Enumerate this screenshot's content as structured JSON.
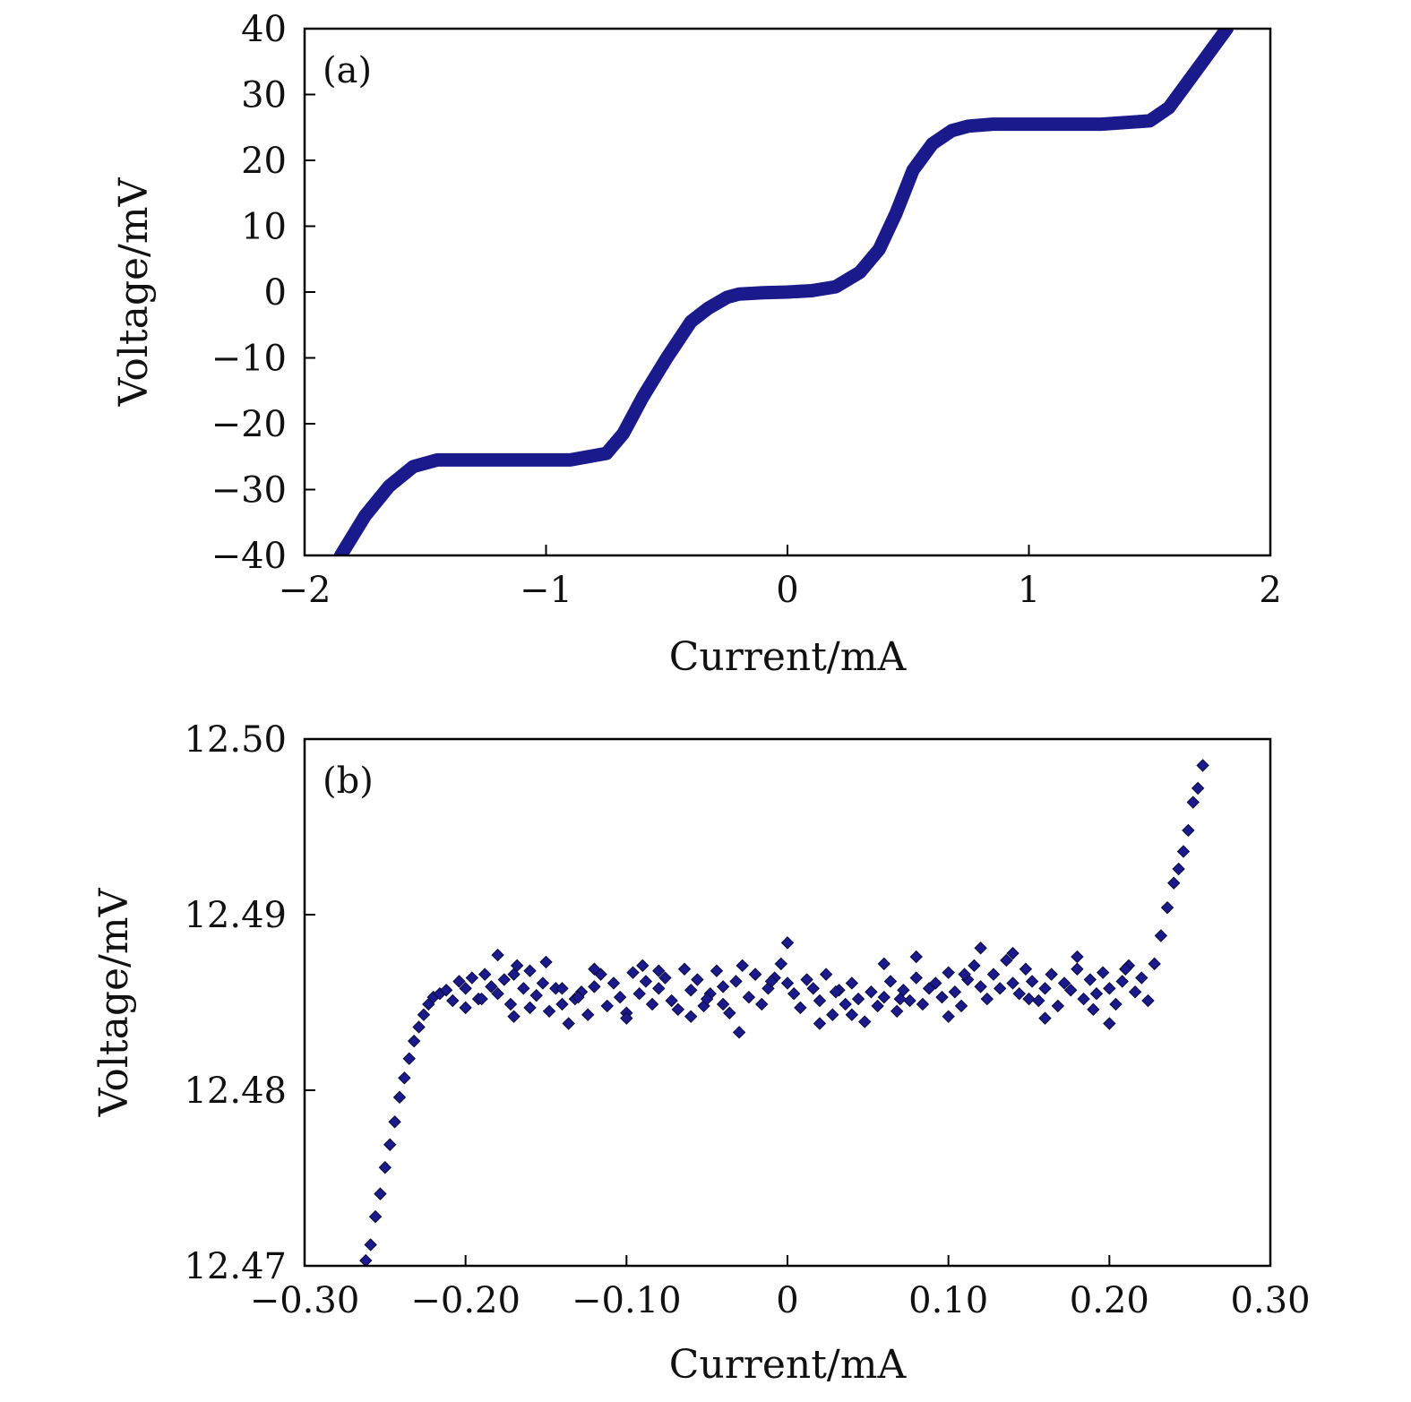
{
  "panels": [
    {
      "panel_label": "(a)",
      "xlabel": "Current/mA",
      "ylabel": "Voltage/mV",
      "xticks": [
        "−2",
        "−1",
        "0",
        "1",
        "2"
      ],
      "yticks": [
        "40",
        "30",
        "20",
        "10",
        "0",
        "−10",
        "−20",
        "−30",
        "−40"
      ]
    },
    {
      "panel_label": "(b)",
      "xlabel": "Current/mA",
      "ylabel": "Voltage/mV",
      "xticks": [
        "−0.30",
        "−0.20",
        "−0.10",
        "0",
        "0.10",
        "0.20",
        "0.30"
      ],
      "yticks": [
        "12.50",
        "12.49",
        "12.48",
        "12.47"
      ]
    }
  ],
  "chart_data": [
    {
      "type": "line",
      "xlabel": "Current/mA",
      "ylabel": "Voltage/mV",
      "xlim": [
        -2,
        2
      ],
      "ylim": [
        -40,
        40
      ],
      "grid": false,
      "color": "#1a1a8c",
      "series": [
        {
          "x": [
            -1.85,
            -1.75,
            -1.65,
            -1.55,
            -1.45,
            -1.2,
            -0.9,
            -0.75,
            -0.68,
            -0.6,
            -0.5,
            -0.4,
            -0.33,
            -0.25,
            -0.2,
            -0.1,
            0.0,
            0.1,
            0.2,
            0.3,
            0.38,
            0.45,
            0.52,
            0.6,
            0.68,
            0.75,
            0.85,
            1.0,
            1.3,
            1.5,
            1.58,
            1.65,
            1.72,
            1.82
          ],
          "y": [
            -40,
            -34,
            -29.5,
            -26.5,
            -25.5,
            -25.5,
            -25.5,
            -24.5,
            -21.5,
            -16,
            -10,
            -4.5,
            -2.5,
            -0.8,
            -0.3,
            -0.1,
            0,
            0.2,
            0.8,
            3,
            6.5,
            12,
            18.5,
            22.5,
            24.5,
            25.2,
            25.5,
            25.5,
            25.5,
            26,
            28,
            31.5,
            35,
            40
          ]
        }
      ]
    },
    {
      "type": "scatter",
      "xlabel": "Current/mA",
      "ylabel": "Voltage/mV",
      "xlim": [
        -0.3,
        0.3
      ],
      "ylim": [
        12.47,
        12.5
      ],
      "grid": false,
      "color": "#1a1a8c",
      "series": [
        {
          "x": [
            -0.262,
            -0.259,
            -0.256,
            -0.253,
            -0.25,
            -0.247,
            -0.244,
            -0.241,
            -0.238,
            -0.235,
            -0.232,
            -0.229,
            -0.226,
            -0.223,
            -0.22,
            -0.216,
            -0.212,
            -0.208,
            -0.204,
            -0.2,
            -0.196,
            -0.192,
            -0.188,
            -0.184,
            -0.18,
            -0.176,
            -0.172,
            -0.168,
            -0.164,
            -0.16,
            -0.156,
            -0.152,
            -0.148,
            -0.144,
            -0.14,
            -0.136,
            -0.132,
            -0.128,
            -0.124,
            -0.12,
            -0.116,
            -0.112,
            -0.108,
            -0.104,
            -0.1,
            -0.096,
            -0.092,
            -0.088,
            -0.084,
            -0.08,
            -0.076,
            -0.072,
            -0.068,
            -0.064,
            -0.06,
            -0.056,
            -0.052,
            -0.048,
            -0.044,
            -0.04,
            -0.036,
            -0.032,
            -0.028,
            -0.024,
            -0.02,
            -0.016,
            -0.012,
            -0.008,
            -0.004,
            0.0,
            0.004,
            0.008,
            0.012,
            0.016,
            0.02,
            0.024,
            0.028,
            0.032,
            0.036,
            0.04,
            0.044,
            0.048,
            0.052,
            0.056,
            0.06,
            0.064,
            0.068,
            0.072,
            0.076,
            0.08,
            0.084,
            0.088,
            0.092,
            0.096,
            0.1,
            0.104,
            0.108,
            0.112,
            0.116,
            0.12,
            0.124,
            0.128,
            0.132,
            0.136,
            0.14,
            0.144,
            0.148,
            0.152,
            0.156,
            0.16,
            0.164,
            0.168,
            0.172,
            0.176,
            0.18,
            0.184,
            0.188,
            0.192,
            0.196,
            0.2,
            0.204,
            0.208,
            0.212,
            0.216,
            0.22,
            0.224,
            0.228,
            0.232,
            0.236,
            0.24,
            0.243,
            0.246,
            0.249,
            0.252,
            0.255,
            0.258,
            -0.2,
            -0.19,
            -0.18,
            -0.17,
            -0.16,
            -0.15,
            -0.14,
            -0.12,
            -0.1,
            -0.08,
            -0.06,
            -0.04,
            -0.03,
            -0.02,
            0.0,
            0.02,
            0.04,
            0.06,
            0.08,
            0.1,
            0.12,
            0.14,
            0.16,
            0.18,
            0.2,
            0.21,
            -0.17,
            -0.13,
            -0.09,
            -0.05,
            -0.01,
            0.03,
            0.07,
            0.11,
            0.15,
            0.19
          ],
          "y": [
            12.4703,
            12.4712,
            12.4728,
            12.4741,
            12.4756,
            12.4769,
            12.4782,
            12.4796,
            12.4807,
            12.4818,
            12.4828,
            12.4836,
            12.4843,
            12.4849,
            12.4853,
            12.4855,
            12.4857,
            12.4851,
            12.4862,
            12.4858,
            12.4864,
            12.4852,
            12.4866,
            12.4859,
            12.4855,
            12.4863,
            12.4849,
            12.4871,
            12.4858,
            12.4847,
            12.4854,
            12.4861,
            12.4845,
            12.4858,
            12.4849,
            12.4838,
            12.4852,
            12.4856,
            12.4843,
            12.4859,
            12.4866,
            12.4848,
            12.4861,
            12.4853,
            12.4844,
            12.4867,
            12.4855,
            12.4862,
            12.4849,
            12.4858,
            12.4864,
            12.4851,
            12.4846,
            12.4869,
            12.4857,
            12.4863,
            12.4848,
            12.4855,
            12.4868,
            12.4859,
            12.4844,
            12.4862,
            12.4871,
            12.4853,
            12.4866,
            12.4849,
            12.4858,
            12.4864,
            12.4872,
            12.4861,
            12.4855,
            12.4847,
            12.4863,
            12.4858,
            12.4851,
            12.4866,
            12.4843,
            12.4857,
            12.4849,
            12.4861,
            12.4852,
            12.4839,
            12.4856,
            12.4848,
            12.4853,
            12.4862,
            12.4845,
            12.4857,
            12.4851,
            12.4864,
            12.4849,
            12.4858,
            12.4861,
            12.4853,
            12.4867,
            12.4856,
            12.4848,
            12.4863,
            12.4871,
            12.4859,
            12.4852,
            12.4866,
            12.4858,
            12.4874,
            12.4861,
            12.4855,
            12.4869,
            12.4862,
            12.4851,
            12.4858,
            12.4866,
            12.4848,
            12.4861,
            12.4857,
            12.4869,
            12.4852,
            12.4863,
            12.4855,
            12.4867,
            12.4858,
            12.4849,
            12.4862,
            12.4871,
            12.4856,
            12.4864,
            12.4851,
            12.4872,
            12.4888,
            12.4904,
            12.4918,
            12.4926,
            12.4936,
            12.4948,
            12.4964,
            12.4972,
            12.4985,
            12.4847,
            12.4852,
            12.4877,
            12.4842,
            12.4868,
            12.4873,
            12.4858,
            12.4869,
            12.4841,
            12.4868,
            12.4842,
            12.4849,
            12.4833,
            12.4866,
            12.4884,
            12.4838,
            12.4843,
            12.4872,
            12.4876,
            12.4842,
            12.4881,
            12.4878,
            12.4841,
            12.4876,
            12.4838,
            12.4869,
            12.4866,
            12.4853,
            12.4871,
            12.4852,
            12.4862,
            12.4856,
            12.4852,
            12.4866,
            12.4852,
            12.4846
          ]
        }
      ]
    }
  ]
}
